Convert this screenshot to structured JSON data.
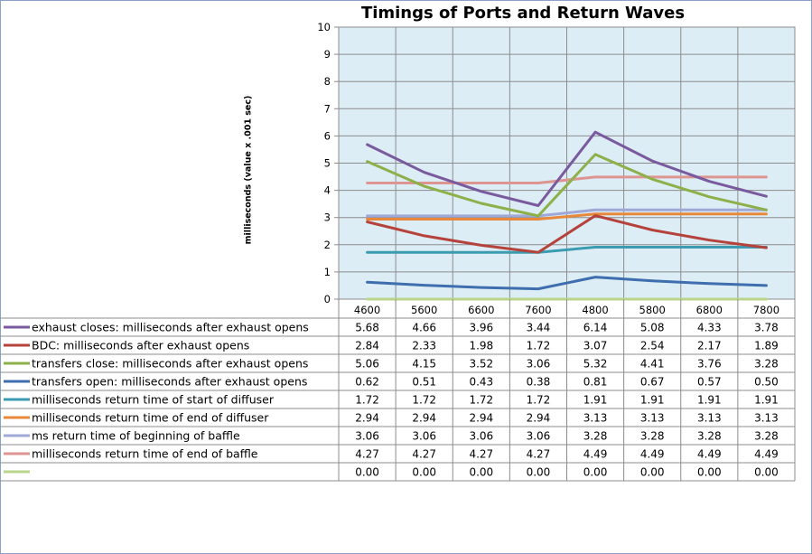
{
  "chart_data": {
    "type": "line",
    "title": "Timings of Ports and Return Waves",
    "ylabel": "milliseconds (value x .001 sec)",
    "xlabel": "",
    "ylim": [
      0,
      10
    ],
    "yticks": [
      0,
      1,
      2,
      3,
      4,
      5,
      6,
      7,
      8,
      9,
      10
    ],
    "grid": true,
    "legend": "data-table",
    "categories": [
      "4600",
      "5600",
      "6600",
      "7600",
      "4800",
      "5800",
      "6800",
      "7800"
    ],
    "series": [
      {
        "name": "exhaust closes: milliseconds after exhaust opens",
        "color": "#7a5a9e",
        "values": [
          5.68,
          4.66,
          3.96,
          3.44,
          6.14,
          5.08,
          4.33,
          3.78
        ]
      },
      {
        "name": "BDC: milliseconds after exhaust opens",
        "color": "#b5433c",
        "values": [
          2.84,
          2.33,
          1.98,
          1.72,
          3.07,
          2.54,
          2.17,
          1.89
        ]
      },
      {
        "name": "transfers close: milliseconds after exhaust opens",
        "color": "#8eb04a",
        "values": [
          5.06,
          4.15,
          3.52,
          3.06,
          5.32,
          4.41,
          3.76,
          3.28
        ]
      },
      {
        "name": "transfers open: milliseconds after exhaust opens",
        "color": "#3e6eae",
        "values": [
          0.62,
          0.51,
          0.43,
          0.38,
          0.81,
          0.67,
          0.57,
          0.5
        ]
      },
      {
        "name": "milliseconds return time of start of diffuser",
        "color": "#3b9bb0",
        "values": [
          1.72,
          1.72,
          1.72,
          1.72,
          1.91,
          1.91,
          1.91,
          1.91
        ]
      },
      {
        "name": "milliseconds return time of end of diffuser",
        "color": "#e8883a",
        "values": [
          2.94,
          2.94,
          2.94,
          2.94,
          3.13,
          3.13,
          3.13,
          3.13
        ]
      },
      {
        "name": "ms return time of beginning of baffle",
        "color": "#9fa8d6",
        "values": [
          3.06,
          3.06,
          3.06,
          3.06,
          3.28,
          3.28,
          3.28,
          3.28
        ]
      },
      {
        "name": "milliseconds return time of end of baffle",
        "color": "#dd9591",
        "values": [
          4.27,
          4.27,
          4.27,
          4.27,
          4.49,
          4.49,
          4.49,
          4.49
        ]
      },
      {
        "name": "",
        "color": "#b9d58c",
        "values": [
          0.0,
          0.0,
          0.0,
          0.0,
          0.0,
          0.0,
          0.0,
          0.0
        ]
      }
    ]
  }
}
